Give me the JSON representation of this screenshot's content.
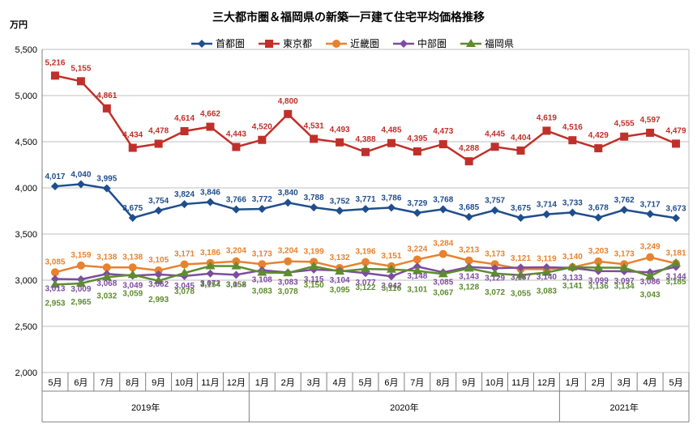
{
  "chart_data": {
    "type": "line",
    "title": "三大都市圏＆福岡県の新築一戸建て住宅平均価格推移",
    "unit_label": "万円",
    "ylim": [
      2000,
      5500
    ],
    "yticks": [
      "2,000",
      "2,500",
      "3,000",
      "3,500",
      "4,000",
      "4,500",
      "5,000",
      "5,500"
    ],
    "categories": [
      "5月",
      "6月",
      "7月",
      "8月",
      "9月",
      "10月",
      "11月",
      "12月",
      "1月",
      "2月",
      "3月",
      "4月",
      "5月",
      "6月",
      "7月",
      "8月",
      "9月",
      "10月",
      "11月",
      "12月",
      "1月",
      "2月",
      "3月",
      "4月",
      "5月"
    ],
    "years": [
      {
        "label": "2019年",
        "start": 0,
        "end": 7
      },
      {
        "label": "2020年",
        "start": 8,
        "end": 19
      },
      {
        "label": "2021年",
        "start": 20,
        "end": 24
      }
    ],
    "legend_position": "top",
    "grid": true,
    "series": [
      {
        "name": "首都圏",
        "color": "#1F4E8C",
        "marker": "diamond",
        "values": [
          4017,
          4040,
          3995,
          3675,
          3754,
          3824,
          3846,
          3766,
          3772,
          3840,
          3788,
          3752,
          3771,
          3786,
          3729,
          3768,
          3685,
          3757,
          3675,
          3714,
          3733,
          3678,
          3762,
          3717,
          3673
        ],
        "labels": [
          "4,017",
          "4,040",
          "3,995",
          "3,675",
          "3,754",
          "3,824",
          "3,846",
          "3,766",
          "3,772",
          "3,840",
          "3,788",
          "3,752",
          "3,771",
          "3,786",
          "3,729",
          "3,768",
          "3,685",
          "3,757",
          "3,675",
          "3,714",
          "3,733",
          "3,678",
          "3,762",
          "3,717",
          "3,673"
        ]
      },
      {
        "name": "東京都",
        "color": "#C0302A",
        "marker": "square",
        "values": [
          5216,
          5155,
          4861,
          4434,
          4478,
          4614,
          4662,
          4443,
          4520,
          4800,
          4531,
          4493,
          4388,
          4485,
          4395,
          4473,
          4288,
          4445,
          4404,
          4619,
          4516,
          4429,
          4555,
          4597,
          4479
        ],
        "labels": [
          "5,216",
          "5,155",
          "4,861",
          "4,434",
          "4,478",
          "4,614",
          "4,662",
          "4,443",
          "4,520",
          "4,800",
          "4,531",
          "4,493",
          "4,388",
          "4,485",
          "4,395",
          "4,473",
          "4,288",
          "4,445",
          "4,404",
          "4,619",
          "4,516",
          "4,429",
          "4,555",
          "4,597",
          "4,479"
        ]
      },
      {
        "name": "近畿圏",
        "color": "#E8822E",
        "marker": "circle",
        "values": [
          3085,
          3159,
          3138,
          3138,
          3105,
          3171,
          3186,
          3204,
          3173,
          3204,
          3199,
          3132,
          3196,
          3151,
          3224,
          3284,
          3213,
          3173,
          3121,
          3119,
          3140,
          3203,
          3173,
          3249,
          3181
        ],
        "labels": [
          "3,085",
          "3,159",
          "3,138",
          "3,138",
          "3,105",
          "3,171",
          "3,186",
          "3,204",
          "3,173",
          "3,204",
          "3,199",
          "3,132",
          "3,196",
          "3,151",
          "3,224",
          "3,284",
          "3,213",
          "3,173",
          "3,121",
          "3,119",
          "3,140",
          "3,203",
          "3,173",
          "3,249",
          "3,181"
        ]
      },
      {
        "name": "中部圏",
        "color": "#7D4CA0",
        "marker": "diamond",
        "values": [
          3013,
          3009,
          3068,
          3049,
          3062,
          3045,
          3072,
          3058,
          3108,
          3083,
          3115,
          3104,
          3077,
          3042,
          3148,
          3085,
          3143,
          3129,
          3137,
          3140,
          3133,
          3099,
          3097,
          3086,
          3144
        ],
        "labels": [
          "3,013",
          "3,009",
          "3,068",
          "3,049",
          "3,062",
          "3,045",
          "3,072",
          "3,058",
          "3,108",
          "3,083",
          "3,115",
          "3,104",
          "3,077",
          "3,042",
          "3,148",
          "3,085",
          "3,143",
          "3,129",
          "3,137",
          "3,140",
          "3,133",
          "3,099",
          "3,097",
          "3,086",
          "3,144"
        ]
      },
      {
        "name": "福岡県",
        "color": "#5E8C2E",
        "marker": "triangle",
        "values": [
          2953,
          2965,
          3032,
          3059,
          2993,
          3078,
          3154,
          3152,
          3083,
          3078,
          3150,
          3095,
          3122,
          3116,
          3101,
          3067,
          3128,
          3072,
          3055,
          3083,
          3141,
          3136,
          3134,
          3043,
          3185
        ],
        "labels": [
          "2,953",
          "2,965",
          "3,032",
          "3,059",
          "2,993",
          "3,078",
          "3,154",
          "3,152",
          "3,083",
          "3,078",
          "3,150",
          "3,095",
          "3,122",
          "3,116",
          "3,101",
          "3,067",
          "3,128",
          "3,072",
          "3,055",
          "3,083",
          "3,141",
          "3,136",
          "3,134",
          "3,043",
          "3,185"
        ]
      }
    ]
  }
}
